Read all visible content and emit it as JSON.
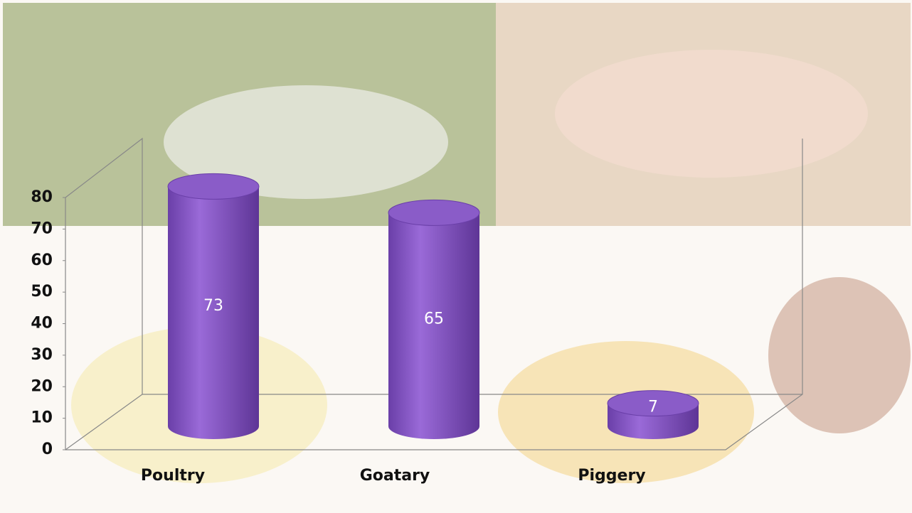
{
  "chart_data": {
    "type": "bar",
    "categories": [
      "Poultry",
      "Goatary",
      "Piggery"
    ],
    "values": [
      73,
      65,
      7
    ],
    "color": "#8a5cc8",
    "ylim": [
      0,
      80
    ],
    "yticks": [
      0,
      10,
      20,
      30,
      40,
      50,
      60,
      70,
      80
    ]
  }
}
